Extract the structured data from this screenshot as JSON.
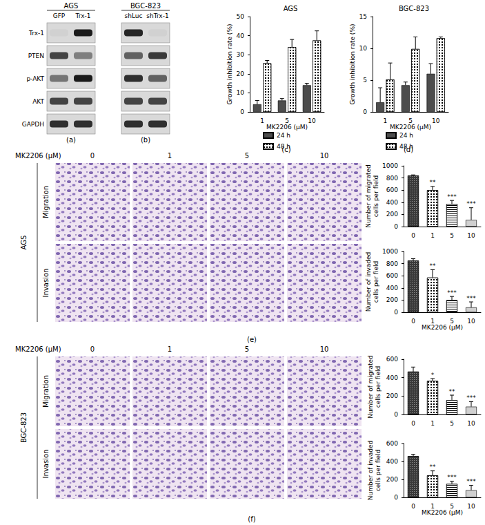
{
  "panel_labels": [
    "(a)",
    "(b)",
    "(c)",
    "(d)",
    "(e)",
    "(f)"
  ],
  "blots": [
    {
      "title": "AGS",
      "lanes": [
        "GFP",
        "Trx-1"
      ],
      "rows": [
        "Trx-1",
        "PTEN",
        "p-AKT",
        "AKT",
        "GAPDH"
      ]
    },
    {
      "title": "BGC-823",
      "lanes": [
        "shLuc",
        "shTrx-1"
      ]
    }
  ],
  "micrographs": [
    {
      "cell_line": "AGS",
      "header": "MK2206 (μM)",
      "doses": [
        0,
        1,
        5,
        10
      ],
      "rows": [
        "Migration",
        "Invasion"
      ]
    },
    {
      "cell_line": "BGC-823",
      "header": "MK2206 (μM)",
      "doses": [
        0,
        1,
        5,
        10
      ],
      "rows": [
        "Migration",
        "Invasion"
      ]
    }
  ],
  "chart_data": [
    {
      "type": "bar",
      "title": "AGS",
      "x_label": "MK2206 (μM)",
      "y_label": "Growth inhibition rate (%)",
      "categories": [
        "1",
        "5",
        "10"
      ],
      "series": [
        {
          "name": "24 h",
          "color": "#4d4d4d",
          "values": [
            4,
            6,
            14
          ],
          "errors": [
            2,
            1,
            1
          ]
        },
        {
          "name": "48 h",
          "color": "#ffffff",
          "values": [
            25.5,
            34,
            37.5
          ],
          "errors": [
            1.5,
            4,
            5
          ]
        }
      ],
      "ylim": [
        0,
        50
      ],
      "yticks": [
        0,
        10,
        20,
        30,
        40,
        50
      ],
      "grid": false,
      "legend": "bottom"
    },
    {
      "type": "bar",
      "title": "BGC-823",
      "x_label": "MK2206 (μM)",
      "y_label": "Growth inhibition rate (%)",
      "categories": [
        "1",
        "5",
        "10"
      ],
      "series": [
        {
          "name": "24 h",
          "color": "#4d4d4d",
          "values": [
            1.5,
            4.2,
            6
          ],
          "errors": [
            2.3,
            0.5,
            1.6
          ]
        },
        {
          "name": "48 h",
          "color": "#ffffff",
          "values": [
            5.1,
            9.9,
            11.6
          ],
          "errors": [
            2.6,
            1.9,
            0.2
          ]
        }
      ],
      "ylim": [
        0,
        15
      ],
      "yticks": [
        0,
        5,
        10,
        15
      ],
      "grid": false,
      "legend": "bottom"
    },
    {
      "type": "bar",
      "y_label": "Number of migrated cells per field",
      "categories": [
        "0",
        "1",
        "5",
        "10"
      ],
      "values": [
        840,
        600,
        370,
        110
      ],
      "errors": [
        10,
        60,
        60,
        200
      ],
      "significance": [
        null,
        "**",
        "***",
        "***"
      ],
      "colors": [
        "#3a3a3a",
        "#ffffff",
        "#ffffff",
        "#d0d0d0"
      ],
      "ylim": [
        0,
        1000
      ],
      "yticks": [
        0,
        200,
        400,
        600,
        800,
        1000
      ],
      "grid": false
    },
    {
      "type": "bar",
      "x_label": "MK2206 (μM)",
      "y_label": "Number of invaded cells per field",
      "categories": [
        "0",
        "1",
        "5",
        "10"
      ],
      "values": [
        850,
        570,
        200,
        80
      ],
      "errors": [
        30,
        130,
        60,
        90
      ],
      "significance": [
        null,
        "**",
        "***",
        "***"
      ],
      "colors": [
        "#3a3a3a",
        "#ffffff",
        "#ffffff",
        "#d0d0d0"
      ],
      "ylim": [
        0,
        1000
      ],
      "yticks": [
        0,
        200,
        400,
        600,
        800,
        1000
      ],
      "grid": false
    },
    {
      "type": "bar",
      "y_label": "Number of migrated cells per field",
      "categories": [
        "0",
        "1",
        "5",
        "10"
      ],
      "values": [
        465,
        365,
        155,
        85
      ],
      "errors": [
        50,
        25,
        55,
        55
      ],
      "significance": [
        null,
        "*",
        "**",
        "***"
      ],
      "colors": [
        "#3a3a3a",
        "#ffffff",
        "#ffffff",
        "#d0d0d0"
      ],
      "ylim": [
        0,
        600
      ],
      "yticks": [
        0,
        200,
        400,
        600
      ],
      "grid": false
    },
    {
      "type": "bar",
      "x_label": "MK2206 (μM)",
      "y_label": "Number of invaded cells per field",
      "categories": [
        "0",
        "1",
        "5",
        "10"
      ],
      "values": [
        460,
        245,
        150,
        80
      ],
      "errors": [
        20,
        50,
        30,
        55
      ],
      "significance": [
        null,
        "**",
        "***",
        "***"
      ],
      "colors": [
        "#3a3a3a",
        "#ffffff",
        "#ffffff",
        "#d0d0d0"
      ],
      "ylim": [
        0,
        600
      ],
      "yticks": [
        0,
        200,
        400,
        600
      ],
      "grid": false
    }
  ]
}
